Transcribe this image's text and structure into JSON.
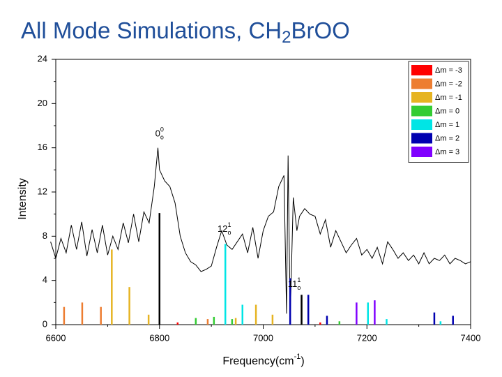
{
  "chart_data": {
    "type": "stick",
    "title_parts": [
      "All Mode Simulations, CH",
      "2",
      "BrOO"
    ],
    "xlabel_parts": [
      "Frequency(cm",
      "-1",
      ")"
    ],
    "ylabel": "Intensity",
    "xlim": [
      6600,
      7400
    ],
    "xticks": [
      6600,
      6800,
      7000,
      7200,
      7400
    ],
    "xminor": [
      6700,
      6900,
      7100,
      7300
    ],
    "ylim": [
      0,
      24
    ],
    "yticks": [
      0,
      4,
      8,
      12,
      16,
      20,
      24
    ],
    "yminor": [
      2,
      6,
      10,
      14,
      18,
      22
    ],
    "legend": "upper right",
    "annotations": [
      {
        "text": "0",
        "sup": "0",
        "sub": "o",
        "x": 6800,
        "y": 17.2
      },
      {
        "text": "12",
        "sup": "1",
        "sub": "o",
        "x": 6925,
        "y": 8.6
      },
      {
        "text": "11",
        "sup": "1",
        "sub": "o",
        "x": 7060,
        "y": 3.6
      }
    ],
    "spectrum": {
      "color": "#000000",
      "x": [
        6590,
        6600,
        6610,
        6620,
        6630,
        6640,
        6650,
        6660,
        6670,
        6680,
        6690,
        6700,
        6710,
        6720,
        6730,
        6740,
        6750,
        6760,
        6770,
        6780,
        6790,
        6797,
        6800,
        6810,
        6820,
        6830,
        6840,
        6850,
        6860,
        6870,
        6880,
        6890,
        6900,
        6910,
        6920,
        6930,
        6940,
        6950,
        6960,
        6970,
        6980,
        6990,
        7000,
        7010,
        7020,
        7030,
        7040,
        7045,
        7048,
        7052,
        7058,
        7065,
        7070,
        7080,
        7090,
        7100,
        7110,
        7120,
        7130,
        7140,
        7150,
        7160,
        7170,
        7180,
        7190,
        7200,
        7210,
        7220,
        7230,
        7240,
        7250,
        7260,
        7270,
        7280,
        7290,
        7300,
        7310,
        7320,
        7330,
        7340,
        7350,
        7360,
        7370,
        7380,
        7390,
        7400
      ],
      "values": [
        7.5,
        6.0,
        7.8,
        6.5,
        9.0,
        6.8,
        9.3,
        6.2,
        8.6,
        6.5,
        9.0,
        6.3,
        8.0,
        6.8,
        9.2,
        7.4,
        10.0,
        7.5,
        10.2,
        9.2,
        12.5,
        16.0,
        14.0,
        13.0,
        12.5,
        11.0,
        8.0,
        6.5,
        5.7,
        5.4,
        4.8,
        5.0,
        5.3,
        7.0,
        8.5,
        7.2,
        6.8,
        7.5,
        8.2,
        6.5,
        8.8,
        6.0,
        8.5,
        9.8,
        10.2,
        12.5,
        13.5,
        1.0,
        15.3,
        0.5,
        11.5,
        8.5,
        9.8,
        10.5,
        10.0,
        9.8,
        8.2,
        9.5,
        7.0,
        8.5,
        7.5,
        6.5,
        7.2,
        7.8,
        6.3,
        6.8,
        6.0,
        7.0,
        5.5,
        7.5,
        6.8,
        6.0,
        6.5,
        5.8,
        6.3,
        5.5,
        6.5,
        5.5,
        6.0,
        5.8,
        6.3,
        5.5,
        6.0,
        5.8,
        5.5,
        5.7
      ]
    },
    "black_sticks": {
      "color": "#000000",
      "x": [
        6800,
        7074
      ],
      "values": [
        10.1,
        2.7
      ]
    },
    "series": [
      {
        "name": "Δm = -3",
        "color": "#ff0000",
        "x": [
          6835,
          7110
        ],
        "values": [
          0.2,
          0.2
        ]
      },
      {
        "name": "Δm = -2",
        "color": "#ed7d31",
        "x": [
          6616,
          6651,
          6687,
          6893
        ],
        "values": [
          1.6,
          2.0,
          1.6,
          0.5
        ]
      },
      {
        "name": "Δm = -1",
        "color": "#e6b422",
        "x": [
          6708,
          6742,
          6779,
          6947,
          6986,
          7018
        ],
        "values": [
          6.8,
          3.4,
          0.9,
          0.6,
          1.8,
          0.9
        ]
      },
      {
        "name": "Δm = 0",
        "color": "#33cc33",
        "x": [
          6870,
          6905,
          6940,
          7147
        ],
        "values": [
          0.6,
          0.7,
          0.5,
          0.3
        ]
      },
      {
        "name": "Δm = 1",
        "color": "#00e5e5",
        "x": [
          6927,
          6960,
          7202,
          7238,
          7342
        ],
        "values": [
          7.3,
          1.8,
          2.0,
          0.5,
          0.3
        ]
      },
      {
        "name": "Δm = 2",
        "color": "#0000b0",
        "x": [
          7052,
          7087,
          7123,
          7330,
          7366
        ],
        "values": [
          4.2,
          2.7,
          0.8,
          1.1,
          0.8
        ]
      },
      {
        "name": "Δm = 3",
        "color": "#8000ff",
        "x": [
          7180,
          7215
        ],
        "values": [
          2.0,
          2.2
        ]
      }
    ]
  }
}
